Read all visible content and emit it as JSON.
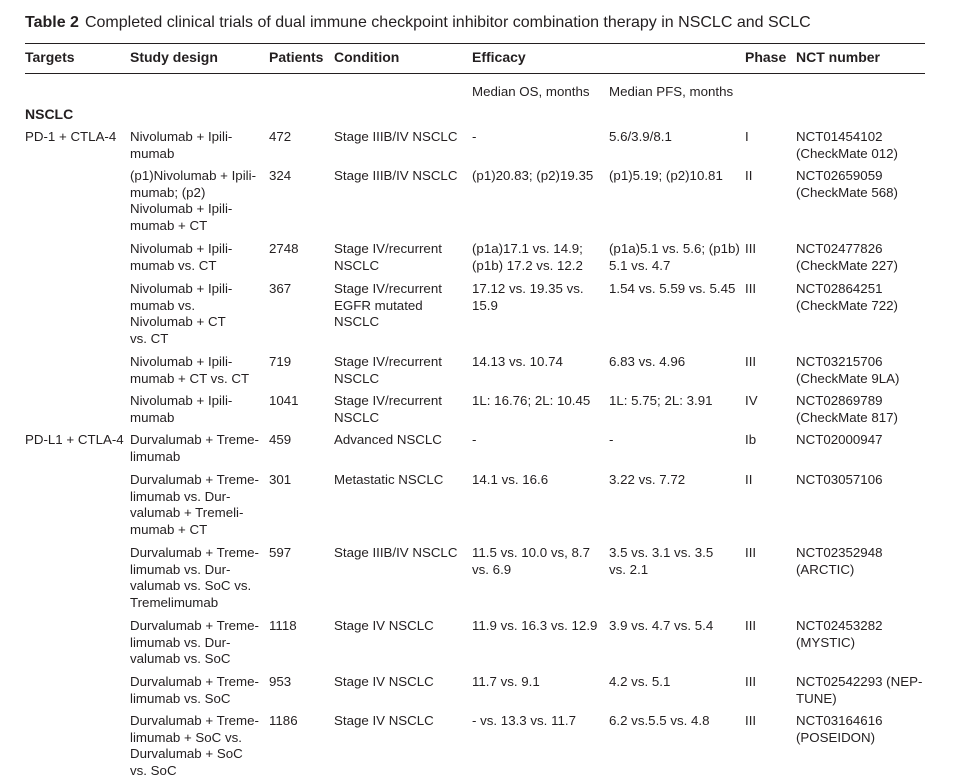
{
  "caption": {
    "label": "Table 2",
    "text": "Completed clinical trials of dual immune checkpoint inhibitor combination therapy in NSCLC and SCLC"
  },
  "headers": {
    "targets": "Targets",
    "design": "Study design",
    "patients": "Patients",
    "condition": "Condition",
    "efficacy": "Efficacy",
    "phase": "Phase",
    "nct": "NCT number",
    "os": "Median OS, months",
    "pfs": "Median PFS, months"
  },
  "section": "NSCLC",
  "rows": [
    {
      "target": "PD-1 + CTLA-4",
      "design": [
        "Nivolumab + Ipili-",
        "mumab"
      ],
      "patients": "472",
      "condition": [
        "Stage IIIB/IV NSCLC"
      ],
      "os": [
        "-"
      ],
      "pfs": [
        "5.6/3.9/8.1"
      ],
      "phase": "I",
      "nct": [
        "NCT01454102",
        "(CheckMate 012)"
      ]
    },
    {
      "target": "",
      "design": [
        "(p1)Nivolumab + Ipili-",
        "mumab; (p2)",
        "Nivolumab + Ipili-",
        "mumab + CT"
      ],
      "patients": "324",
      "condition": [
        "Stage IIIB/IV NSCLC"
      ],
      "os": [
        "(p1)20.83; (p2)19.35"
      ],
      "pfs": [
        "(p1)5.19; (p2)10.81"
      ],
      "phase": "II",
      "nct": [
        "NCT02659059",
        "(CheckMate 568)"
      ]
    },
    {
      "target": "",
      "design": [
        "Nivolumab + Ipili-",
        "mumab vs. CT"
      ],
      "patients": "2748",
      "condition": [
        "Stage IV/recurrent",
        "NSCLC"
      ],
      "os": [
        "(p1a)17.1 vs. 14.9;",
        "(p1b) 17.2 vs. 12.2"
      ],
      "pfs": [
        "(p1a)5.1 vs. 5.6; (p1b)",
        "5.1 vs. 4.7"
      ],
      "phase": "III",
      "nct": [
        "NCT02477826",
        "(CheckMate 227)"
      ]
    },
    {
      "target": "",
      "design": [
        "Nivolumab + Ipili-",
        "mumab vs.",
        "Nivolumab + CT",
        "vs. CT"
      ],
      "patients": "367",
      "condition": [
        "Stage IV/recurrent",
        "EGFR mutated",
        "NSCLC"
      ],
      "os": [
        "17.12 vs. 19.35 vs.",
        "15.9"
      ],
      "pfs": [
        "1.54 vs. 5.59 vs. 5.45"
      ],
      "phase": "III",
      "nct": [
        "NCT02864251",
        "(CheckMate 722)"
      ]
    },
    {
      "target": "",
      "design": [
        "Nivolumab + Ipili-",
        "mumab + CT vs. CT"
      ],
      "patients": "719",
      "condition": [
        "Stage IV/recurrent",
        "NSCLC"
      ],
      "os": [
        "14.13 vs. 10.74"
      ],
      "pfs": [
        "6.83 vs. 4.96"
      ],
      "phase": "III",
      "nct": [
        "NCT03215706",
        "(CheckMate 9LA)"
      ]
    },
    {
      "target": "",
      "design": [
        "Nivolumab + Ipili-",
        "mumab"
      ],
      "patients": "1041",
      "condition": [
        "Stage IV/recurrent",
        "NSCLC"
      ],
      "os": [
        "1L: 16.76; 2L: 10.45"
      ],
      "pfs": [
        "1L: 5.75; 2L: 3.91"
      ],
      "phase": "IV",
      "nct": [
        "NCT02869789",
        "(CheckMate 817)"
      ]
    },
    {
      "target": "PD-L1 + CTLA-4",
      "design": [
        "Durvalumab + Treme-",
        "limumab"
      ],
      "patients": "459",
      "condition": [
        "Advanced NSCLC"
      ],
      "os": [
        "-"
      ],
      "pfs": [
        "-"
      ],
      "phase": "Ib",
      "nct": [
        "NCT02000947"
      ]
    },
    {
      "target": "",
      "design": [
        "Durvalumab + Treme-",
        "limumab vs. Dur-",
        "valumab + Tremeli-",
        "mumab + CT"
      ],
      "patients": "301",
      "condition": [
        "Metastatic NSCLC"
      ],
      "os": [
        "14.1 vs. 16.6"
      ],
      "pfs": [
        "3.22 vs. 7.72"
      ],
      "phase": "II",
      "nct": [
        "NCT03057106"
      ]
    },
    {
      "target": "",
      "design": [
        "Durvalumab + Treme-",
        "limumab vs. Dur-",
        "valumab vs. SoC vs.",
        "Tremelimumab"
      ],
      "patients": "597",
      "condition": [
        "Stage IIIB/IV NSCLC"
      ],
      "os": [
        "11.5 vs. 10.0 vs, 8.7",
        "vs. 6.9"
      ],
      "pfs": [
        "3.5 vs. 3.1 vs. 3.5",
        "vs. 2.1"
      ],
      "phase": "III",
      "nct": [
        "NCT02352948",
        "(ARCTIC)"
      ]
    },
    {
      "target": "",
      "design": [
        "Durvalumab + Treme-",
        "limumab vs. Dur-",
        "valumab vs. SoC"
      ],
      "patients": "1118",
      "condition": [
        "Stage IV NSCLC"
      ],
      "os": [
        "11.9 vs. 16.3 vs. 12.9"
      ],
      "pfs": [
        "3.9 vs. 4.7 vs. 5.4"
      ],
      "phase": "III",
      "nct": [
        "NCT02453282",
        "(MYSTIC)"
      ]
    },
    {
      "target": "",
      "design": [
        "Durvalumab + Treme-",
        "limumab vs. SoC"
      ],
      "patients": "953",
      "condition": [
        "Stage IV NSCLC"
      ],
      "os": [
        "11.7 vs. 9.1"
      ],
      "pfs": [
        "4.2 vs. 5.1"
      ],
      "phase": "III",
      "nct": [
        "NCT02542293 (NEP-",
        "TUNE)"
      ]
    },
    {
      "target": "",
      "design": [
        "Durvalumab + Treme-",
        "limumab + SoC vs.",
        "Durvalumab + SoC",
        "vs. SoC"
      ],
      "patients": "1186",
      "condition": [
        "Stage IV NSCLC"
      ],
      "os": [
        "- vs. 13.3 vs. 11.7"
      ],
      "pfs": [
        "6.2 vs.5.5 vs. 4.8"
      ],
      "phase": "III",
      "nct": [
        "NCT03164616",
        "(POSEIDON)"
      ]
    }
  ]
}
